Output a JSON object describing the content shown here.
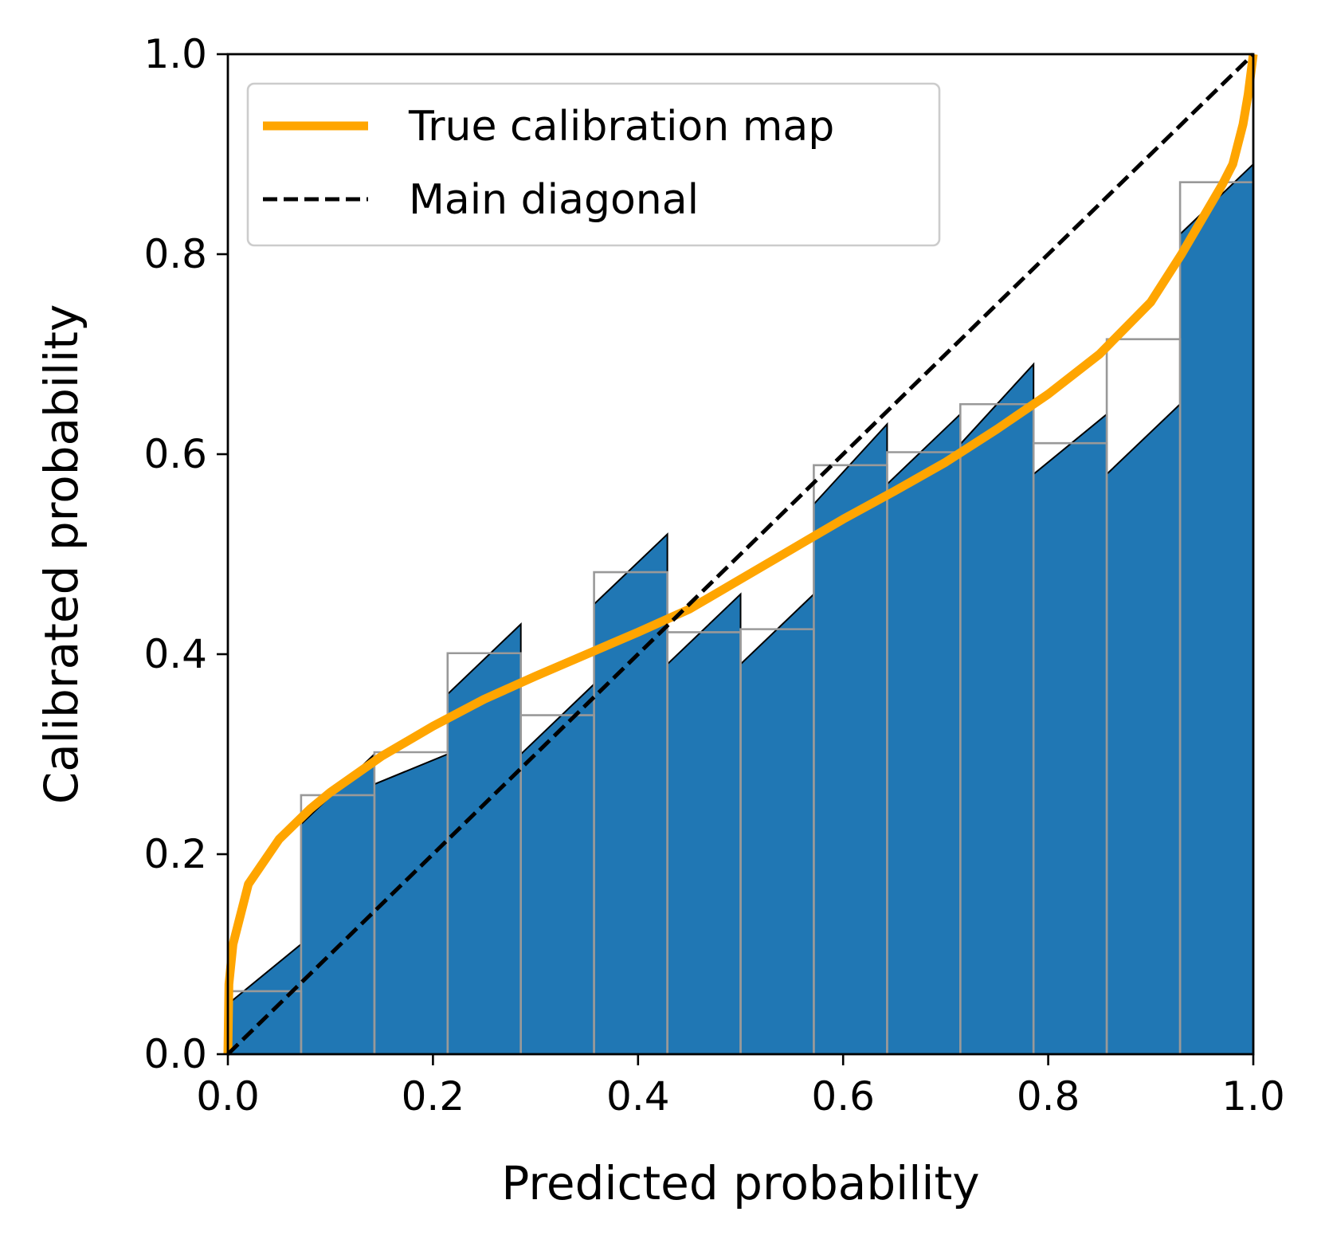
{
  "chart_data": {
    "type": "bar",
    "title": "",
    "xlabel": "Predicted probability",
    "ylabel": "Calibrated probability",
    "xlim": [
      0.0,
      1.0
    ],
    "ylim": [
      0.0,
      1.0
    ],
    "xticks": [
      "0.0",
      "0.2",
      "0.4",
      "0.6",
      "0.8",
      "1.0"
    ],
    "yticks": [
      "0.0",
      "0.2",
      "0.4",
      "0.6",
      "0.8",
      "1.0"
    ],
    "grid": false,
    "legend_position": "upper-left",
    "bins": {
      "edges": [
        0.0,
        0.0714,
        0.1429,
        0.2143,
        0.2857,
        0.3571,
        0.4286,
        0.5,
        0.5714,
        0.6429,
        0.7143,
        0.7857,
        0.8571,
        0.9286,
        1.0
      ],
      "bar_left_heights": [
        0.05,
        0.23,
        0.27,
        0.36,
        0.3,
        0.45,
        0.39,
        0.39,
        0.55,
        0.57,
        0.61,
        0.58,
        0.58,
        0.82
      ],
      "bar_right_heights": [
        0.11,
        0.3,
        0.3,
        0.43,
        0.37,
        0.52,
        0.46,
        0.46,
        0.63,
        0.64,
        0.69,
        0.64,
        0.65,
        0.89
      ],
      "bin_mean_levels": [
        0.063,
        0.259,
        0.302,
        0.401,
        0.339,
        0.482,
        0.422,
        0.425,
        0.589,
        0.602,
        0.65,
        0.611,
        0.715,
        0.872
      ],
      "fill_color": "#2077b4",
      "outline_color": "#000000",
      "mean_outline_color": "#999999"
    },
    "series": [
      {
        "name": "True calibration map",
        "style": "solid",
        "color": "#ffa500",
        "x": [
          0.0,
          0.001,
          0.005,
          0.02,
          0.05,
          0.08,
          0.1,
          0.15,
          0.2,
          0.25,
          0.3,
          0.35,
          0.4,
          0.45,
          0.5,
          0.55,
          0.6,
          0.65,
          0.7,
          0.75,
          0.8,
          0.85,
          0.9,
          0.93,
          0.95,
          0.97,
          0.98,
          0.99,
          0.995,
          1.0
        ],
        "y": [
          0.0,
          0.07,
          0.11,
          0.17,
          0.215,
          0.245,
          0.262,
          0.298,
          0.328,
          0.355,
          0.378,
          0.4,
          0.422,
          0.445,
          0.475,
          0.505,
          0.535,
          0.563,
          0.592,
          0.625,
          0.66,
          0.7,
          0.752,
          0.8,
          0.835,
          0.87,
          0.89,
          0.93,
          0.96,
          1.0
        ]
      },
      {
        "name": "Main diagonal",
        "style": "dashed",
        "color": "#000000",
        "x": [
          0.0,
          1.0
        ],
        "y": [
          0.0,
          1.0
        ]
      }
    ]
  }
}
